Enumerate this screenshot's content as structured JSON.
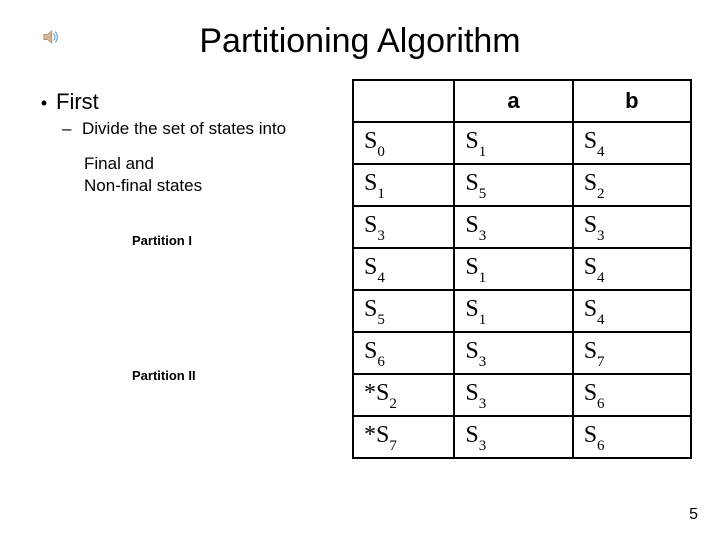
{
  "title": "Partitioning Algorithm",
  "bullet": {
    "point": "First",
    "sub": "Divide the set of states into"
  },
  "indent": {
    "line1": "Final and",
    "line2": "Non-final states"
  },
  "partitions": {
    "p1": "Partition I",
    "p2": "Partition II"
  },
  "table": {
    "headers": {
      "col1": "",
      "col2": "a",
      "col3": "b"
    },
    "rows": [
      {
        "s_pre": "",
        "s_base": "S",
        "s_sub": "0",
        "a_base": "S",
        "a_sub": "1",
        "b_base": "S",
        "b_sub": "4"
      },
      {
        "s_pre": "",
        "s_base": "S",
        "s_sub": "1",
        "a_base": "S",
        "a_sub": "5",
        "b_base": "S",
        "b_sub": "2"
      },
      {
        "s_pre": "",
        "s_base": "S",
        "s_sub": "3",
        "a_base": "S",
        "a_sub": "3",
        "b_base": "S",
        "b_sub": "3"
      },
      {
        "s_pre": "",
        "s_base": "S",
        "s_sub": "4",
        "a_base": "S",
        "a_sub": "1",
        "b_base": "S",
        "b_sub": "4"
      },
      {
        "s_pre": "",
        "s_base": "S",
        "s_sub": "5",
        "a_base": "S",
        "a_sub": "1",
        "b_base": "S",
        "b_sub": "4"
      },
      {
        "s_pre": "",
        "s_base": "S",
        "s_sub": "6",
        "a_base": "S",
        "a_sub": "3",
        "b_base": "S",
        "b_sub": "7"
      },
      {
        "s_pre": "*",
        "s_base": "S",
        "s_sub": "2",
        "a_base": "S",
        "a_sub": "3",
        "b_base": "S",
        "b_sub": "6"
      },
      {
        "s_pre": "*",
        "s_base": "S",
        "s_sub": "7",
        "a_base": "S",
        "a_sub": "3",
        "b_base": "S",
        "b_sub": "6"
      }
    ],
    "border_color": "#000000",
    "header_font": "Comic Sans MS",
    "cell_font": "Times New Roman",
    "header_fontsize": 22,
    "cell_fontsize": 24,
    "sub_fontsize": 15
  },
  "page_number": "5",
  "colors": {
    "background": "#ffffff",
    "text": "#000000",
    "speaker_body": "#d4b896",
    "speaker_wave": "#6699cc"
  }
}
